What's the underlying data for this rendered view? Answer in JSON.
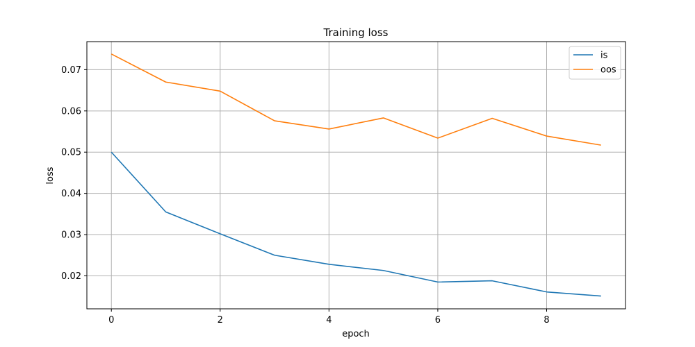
{
  "chart_data": {
    "type": "line",
    "title": "Training loss",
    "xlabel": "epoch",
    "ylabel": "loss",
    "x": [
      0,
      1,
      2,
      3,
      4,
      5,
      6,
      7,
      8,
      9
    ],
    "xlim": [
      -0.45,
      9.45
    ],
    "ylim": [
      0.012,
      0.0768
    ],
    "x_ticks": [
      0,
      2,
      4,
      6,
      8
    ],
    "x_tick_labels": [
      "0",
      "2",
      "4",
      "6",
      "8"
    ],
    "y_ticks": [
      0.02,
      0.03,
      0.04,
      0.05,
      0.06,
      0.07
    ],
    "y_tick_labels": [
      "0.02",
      "0.03",
      "0.04",
      "0.05",
      "0.06",
      "0.07"
    ],
    "grid": true,
    "legend_position": "top-right",
    "series": [
      {
        "name": "is",
        "color": "#1f77b4",
        "values": [
          0.05,
          0.0355,
          0.0302,
          0.025,
          0.0228,
          0.0213,
          0.0185,
          0.0188,
          0.0161,
          0.0151
        ]
      },
      {
        "name": "oos",
        "color": "#ff7f0e",
        "values": [
          0.0738,
          0.067,
          0.0648,
          0.0576,
          0.0556,
          0.0583,
          0.0534,
          0.0582,
          0.0539,
          0.0517
        ]
      }
    ]
  }
}
